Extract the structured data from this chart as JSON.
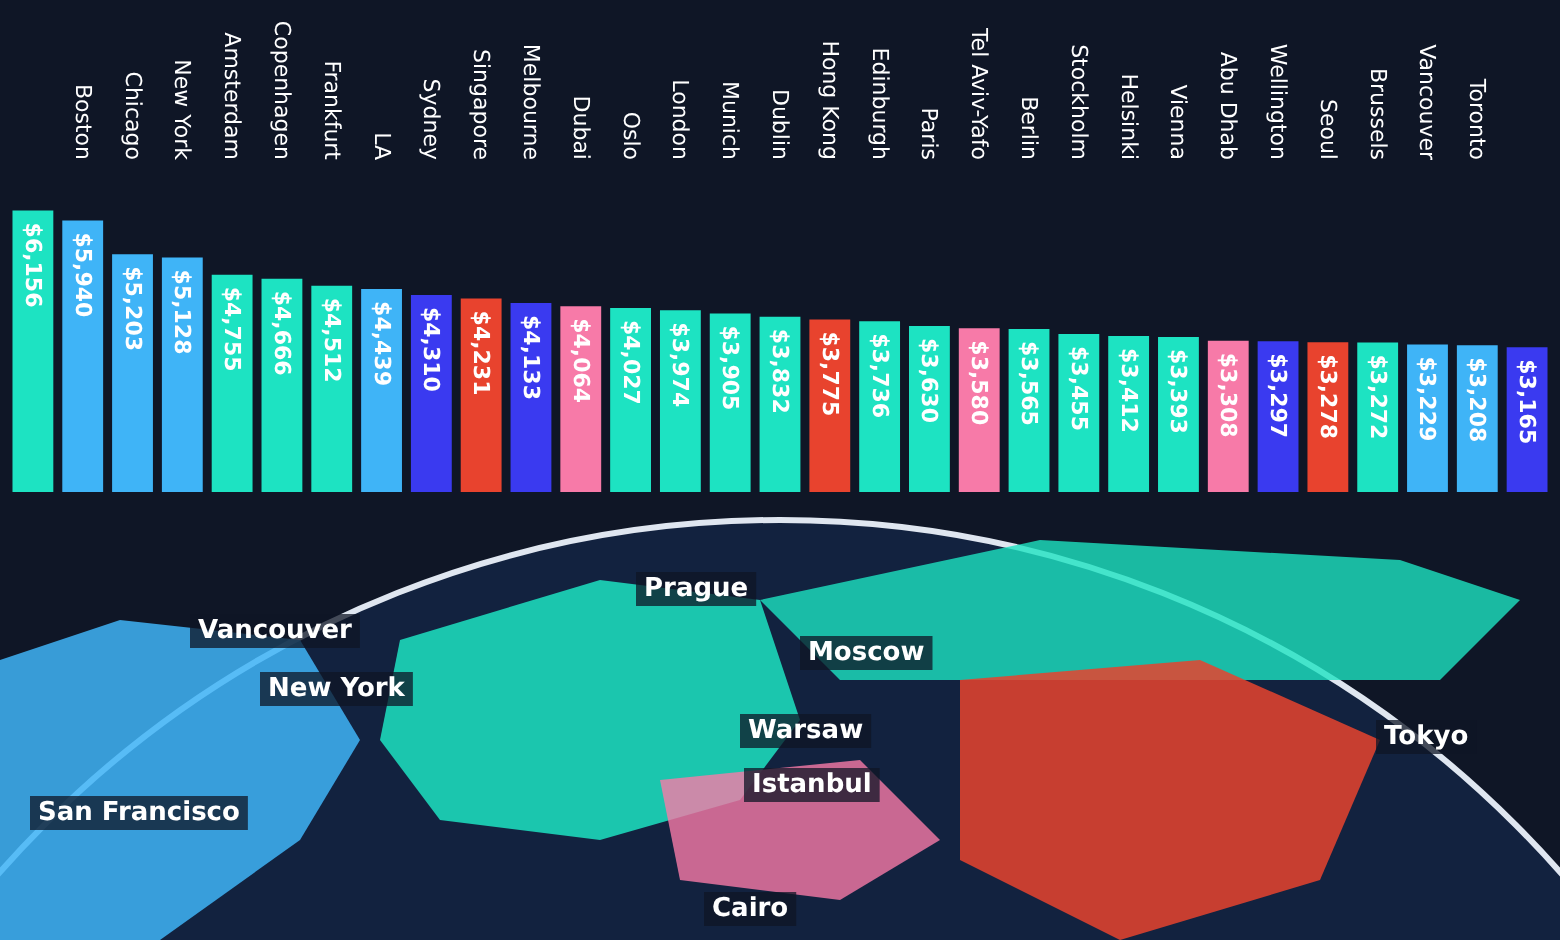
{
  "chart_data": {
    "type": "bar",
    "categories": [
      null,
      "Boston",
      "Chicago",
      "New York",
      "Amsterdam",
      "Copenhagen",
      "Frankfurt",
      "LA",
      "Sydney",
      "Singapore",
      "Melbourne",
      "Dubai",
      "Oslo",
      "London",
      "Munich",
      "Dublin",
      "Hong Kong",
      "Edinburgh",
      "Paris",
      "Tel Aviv-Yafo",
      "Berlin",
      "Stockholm",
      "Helsinki",
      "Vienna",
      "Abu Dhab",
      "Wellington",
      "Seoul",
      "Brussels",
      "Vancouver",
      "Toronto",
      null
    ],
    "values": [
      6156,
      5940,
      5203,
      5128,
      4755,
      4666,
      4512,
      4439,
      4310,
      4231,
      4133,
      4064,
      4027,
      3974,
      3905,
      3832,
      3775,
      3736,
      3630,
      3580,
      3565,
      3455,
      3412,
      3393,
      3308,
      3297,
      3278,
      3272,
      3229,
      3208,
      3165
    ],
    "value_labels": [
      "$6,156",
      "$5,940",
      "$5,203",
      "$5,128",
      "$4,755",
      "$4,666",
      "$4,512",
      "$4,439",
      "$4,310",
      "$4,231",
      "$4,133",
      "$4,064",
      "$4,027",
      "$3,974",
      "$3,905",
      "$3,832",
      "$3,775",
      "$3,736",
      "$3,630",
      "$3,580",
      "$3,565",
      "$3,455",
      "$3,412",
      "$3,393",
      "$3,308",
      "$3,297",
      "$3,278",
      "$3,272",
      "$3,229",
      "$3,208",
      "$3,165"
    ],
    "colors": [
      "#1de3c2",
      "#3fb4f7",
      "#3fb4f7",
      "#3fb4f7",
      "#1de3c2",
      "#1de3c2",
      "#1de3c2",
      "#3fb4f7",
      "#3a3af0",
      "#e8432e",
      "#3a3af0",
      "#f77aa8",
      "#1de3c2",
      "#1de3c2",
      "#1de3c2",
      "#1de3c2",
      "#e8432e",
      "#1de3c2",
      "#1de3c2",
      "#f77aa8",
      "#1de3c2",
      "#1de3c2",
      "#1de3c2",
      "#1de3c2",
      "#f77aa8",
      "#3a3af0",
      "#e8432e",
      "#1de3c2",
      "#3fb4f7",
      "#3fb4f7",
      "#3a3af0"
    ],
    "annotations": [
      "Vancouver",
      "New York",
      "San Francisco",
      "Prague",
      "Moscow",
      "Warsaw",
      "Istanbul",
      "Tokyo",
      "Cairo"
    ],
    "grid": false
  }
}
